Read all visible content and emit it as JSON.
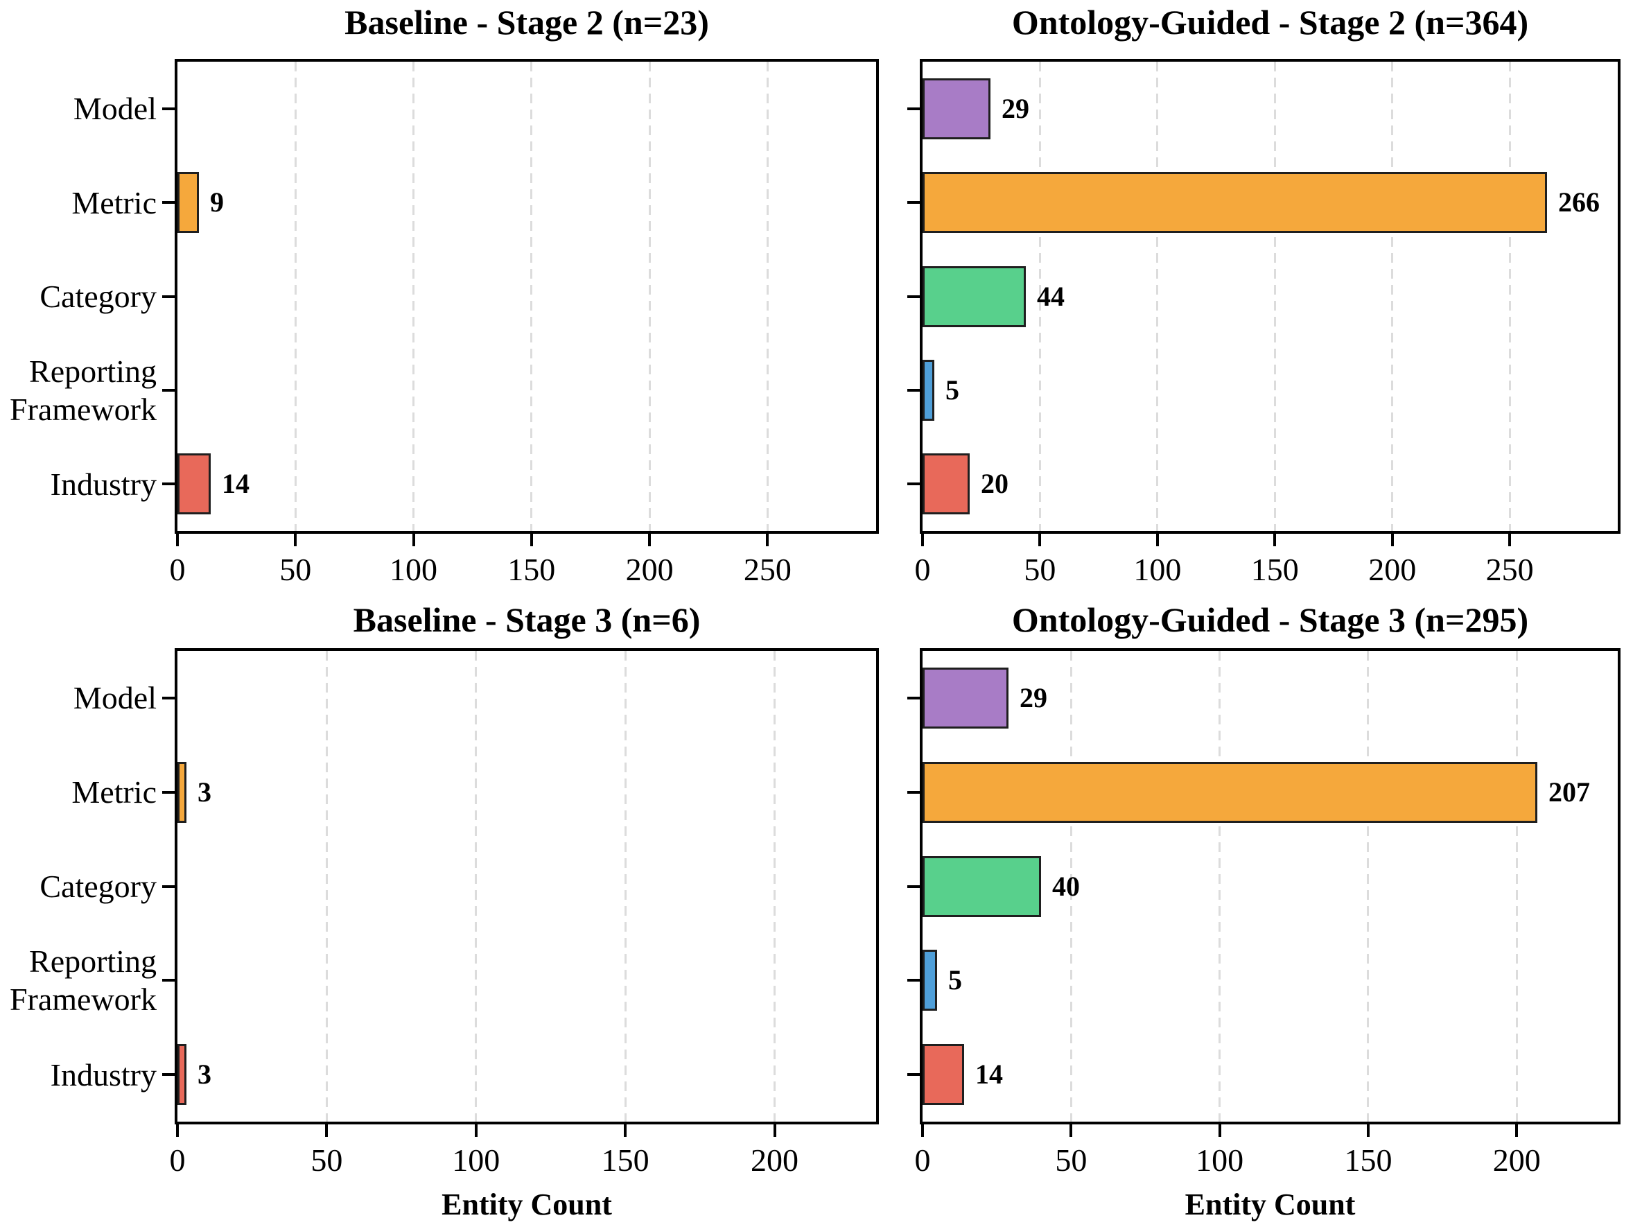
{
  "figure": {
    "background_color": "#ffffff",
    "text_color": "#000000",
    "bar_edge_color": "#1f1f1f",
    "gridline_color": "#dcdcdc",
    "spine_color": "#000000",
    "categories": [
      "Model",
      "Metric",
      "Category",
      "Reporting\nFramework",
      "Industry"
    ],
    "bar_colors": [
      "#A87CC6",
      "#F5A83C",
      "#58D08C",
      "#4F9FD9",
      "#E8695A"
    ],
    "xlabel": "Entity Count"
  },
  "chart_data": [
    {
      "type": "bar",
      "orientation": "horizontal",
      "title": "Baseline - Stage 2 (n=23)",
      "categories": [
        "Model",
        "Metric",
        "Category",
        "Reporting Framework",
        "Industry"
      ],
      "values": [
        0,
        9,
        0,
        0,
        14
      ],
      "value_labels": [
        "",
        "9",
        "",
        "",
        "14"
      ],
      "bar_colors": [
        "#A87CC6",
        "#F5A83C",
        "#58D08C",
        "#4F9FD9",
        "#E8695A"
      ],
      "xlim": [
        0,
        296
      ],
      "xticks": [
        0,
        50,
        100,
        150,
        200,
        250
      ],
      "xlabel": "",
      "grid": "vertical-dashed",
      "legend": "none"
    },
    {
      "type": "bar",
      "orientation": "horizontal",
      "title": "Ontology-Guided - Stage 2 (n=364)",
      "categories": [
        "Model",
        "Metric",
        "Category",
        "Reporting Framework",
        "Industry"
      ],
      "values": [
        29,
        266,
        44,
        5,
        20
      ],
      "value_labels": [
        "29",
        "266",
        "44",
        "5",
        "20"
      ],
      "bar_colors": [
        "#A87CC6",
        "#F5A83C",
        "#58D08C",
        "#4F9FD9",
        "#E8695A"
      ],
      "xlim": [
        0,
        296
      ],
      "xticks": [
        0,
        50,
        100,
        150,
        200,
        250
      ],
      "xlabel": "",
      "grid": "vertical-dashed",
      "legend": "none"
    },
    {
      "type": "bar",
      "orientation": "horizontal",
      "title": "Baseline - Stage 3 (n=6)",
      "categories": [
        "Model",
        "Metric",
        "Category",
        "Reporting Framework",
        "Industry"
      ],
      "values": [
        0,
        3,
        0,
        0,
        3
      ],
      "value_labels": [
        "",
        "3",
        "",
        "",
        "3"
      ],
      "bar_colors": [
        "#A87CC6",
        "#F5A83C",
        "#58D08C",
        "#4F9FD9",
        "#E8695A"
      ],
      "xlim": [
        0,
        234
      ],
      "xticks": [
        0,
        50,
        100,
        150,
        200
      ],
      "xlabel": "Entity Count",
      "grid": "vertical-dashed",
      "legend": "none"
    },
    {
      "type": "bar",
      "orientation": "horizontal",
      "title": "Ontology-Guided - Stage 3 (n=295)",
      "categories": [
        "Model",
        "Metric",
        "Category",
        "Reporting Framework",
        "Industry"
      ],
      "values": [
        29,
        207,
        40,
        5,
        14
      ],
      "value_labels": [
        "29",
        "207",
        "40",
        "5",
        "14"
      ],
      "bar_colors": [
        "#A87CC6",
        "#F5A83C",
        "#58D08C",
        "#4F9FD9",
        "#E8695A"
      ],
      "xlim": [
        0,
        234
      ],
      "xticks": [
        0,
        50,
        100,
        150,
        200
      ],
      "xlabel": "Entity Count",
      "grid": "vertical-dashed",
      "legend": "none"
    }
  ]
}
